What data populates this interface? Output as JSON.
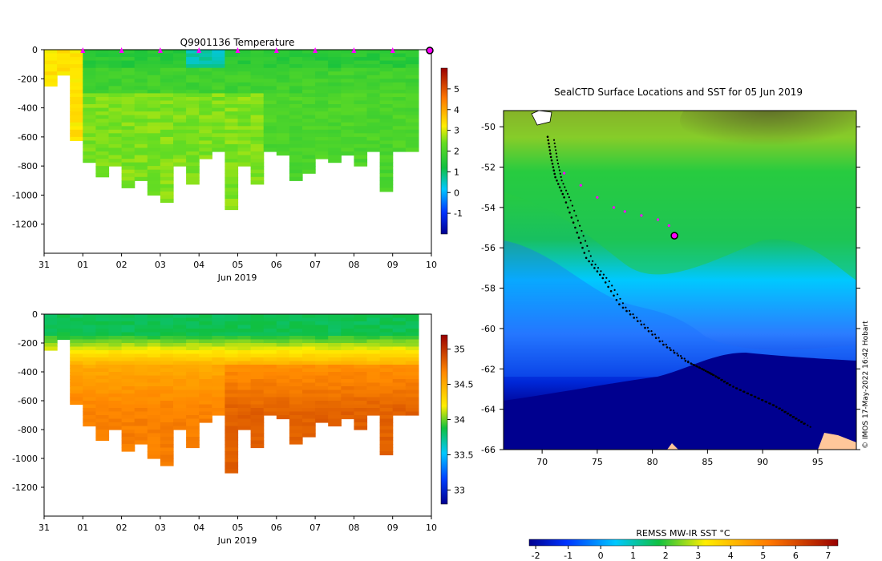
{
  "chart_data": [
    {
      "type": "heatmap",
      "title": "Q9901136  Temperature",
      "xlabel": "Jun 2019",
      "x_ticks": [
        "31",
        "01",
        "02",
        "03",
        "04",
        "05",
        "06",
        "07",
        "08",
        "09",
        "10"
      ],
      "y_ticks": [
        "0",
        "-200",
        "-400",
        "-600",
        "-800",
        "-1000",
        "-1200"
      ],
      "ylim": [
        -1400,
        0
      ],
      "colorbar": {
        "ticks": [
          "5",
          "4",
          "3",
          "2",
          "1",
          "0",
          "-1"
        ],
        "range": [
          -2,
          6
        ]
      },
      "surface_markers_days": [
        1,
        2,
        3,
        4,
        5,
        6,
        7,
        8,
        9
      ],
      "profile_depths": [
        -250,
        -170,
        -620,
        -760,
        -860,
        -780,
        -930,
        -900,
        -980,
        -1050,
        -800,
        -920,
        -750,
        -700,
        -1090,
        -800,
        -920,
        -700,
        -710,
        -890,
        -850,
        -740,
        -760,
        -720,
        -800,
        -700,
        -960,
        -700,
        -690
      ]
    },
    {
      "type": "heatmap",
      "title": "",
      "xlabel": "Jun 2019",
      "x_ticks": [
        "31",
        "01",
        "02",
        "03",
        "04",
        "05",
        "06",
        "07",
        "08",
        "09",
        "10"
      ],
      "y_ticks": [
        "0",
        "-200",
        "-400",
        "-600",
        "-800",
        "-1000",
        "-1200"
      ],
      "ylim": [
        -1400,
        0
      ],
      "colorbar": {
        "ticks": [
          "35",
          "34.5",
          "34",
          "33.5",
          "33"
        ],
        "range": [
          32.8,
          35.2
        ]
      }
    },
    {
      "type": "scatter",
      "title": "SealCTD Surface Locations and SST for 05 Jun 2019",
      "xlim": [
        66.5,
        98.5
      ],
      "ylim": [
        -66,
        -49.2
      ],
      "x_ticks": [
        "70",
        "75",
        "80",
        "85",
        "90",
        "95"
      ],
      "y_ticks": [
        "-50",
        "-52",
        "-54",
        "-56",
        "-58",
        "-60",
        "-62",
        "-64",
        "-66"
      ],
      "track_current": {
        "lon": [
          72.0,
          73.5,
          75.0,
          76.5,
          77.5,
          79.0,
          80.5,
          81.5,
          82.0
        ],
        "lat": [
          -52.3,
          -52.9,
          -53.5,
          -54.0,
          -54.2,
          -54.4,
          -54.6,
          -54.9,
          -55.4
        ]
      },
      "track_history": {
        "lon": [
          70.5,
          70.8,
          71.2,
          72.0,
          73.0,
          74.0,
          75.5,
          77.0,
          79.0,
          81.0,
          83.0,
          84.5,
          85.5,
          87.0,
          89.0,
          91.0,
          92.5,
          94.0
        ],
        "lat": [
          -50.5,
          -51.5,
          -52.5,
          -53.5,
          -55.0,
          -56.5,
          -57.5,
          -58.8,
          -59.8,
          -60.8,
          -61.6,
          -62.0,
          -62.3,
          -62.8,
          -63.3,
          -63.8,
          -64.3,
          -64.8
        ]
      },
      "current_location": {
        "lon": 82.0,
        "lat": -55.4
      },
      "colorbar": {
        "label": "REMSS MW-IR SST °C",
        "ticks": [
          "-2",
          "-1",
          "0",
          "1",
          "2",
          "3",
          "4",
          "5",
          "6",
          "7"
        ],
        "range": [
          -2.2,
          7.3
        ]
      }
    }
  ],
  "credit": "© IMOS 17-May-2022 16:42 Hobart"
}
